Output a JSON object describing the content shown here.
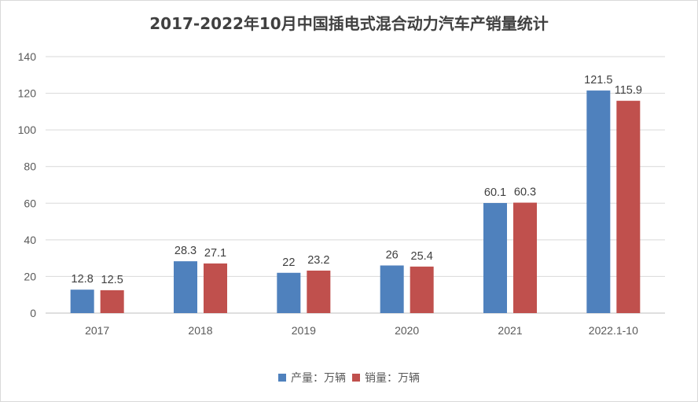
{
  "chart_data": {
    "type": "bar",
    "title": "2017-2022年10月中国插电式混合动力汽车产销量统计",
    "xlabel": "",
    "ylabel": "",
    "categories": [
      "2017",
      "2018",
      "2019",
      "2020",
      "2021",
      "2022.1-10"
    ],
    "series": [
      {
        "name": "产量：万辆",
        "color": "#4f81bd",
        "values": [
          12.8,
          28.3,
          22,
          26,
          60.1,
          121.5
        ]
      },
      {
        "name": "销量：万辆",
        "color": "#c0504d",
        "values": [
          12.5,
          27.1,
          23.2,
          25.4,
          60.3,
          115.9
        ]
      }
    ],
    "ylim": [
      0,
      140
    ],
    "yticks": [
      0,
      20,
      40,
      60,
      80,
      100,
      120,
      140
    ],
    "grid": true,
    "legend_position": "bottom"
  }
}
